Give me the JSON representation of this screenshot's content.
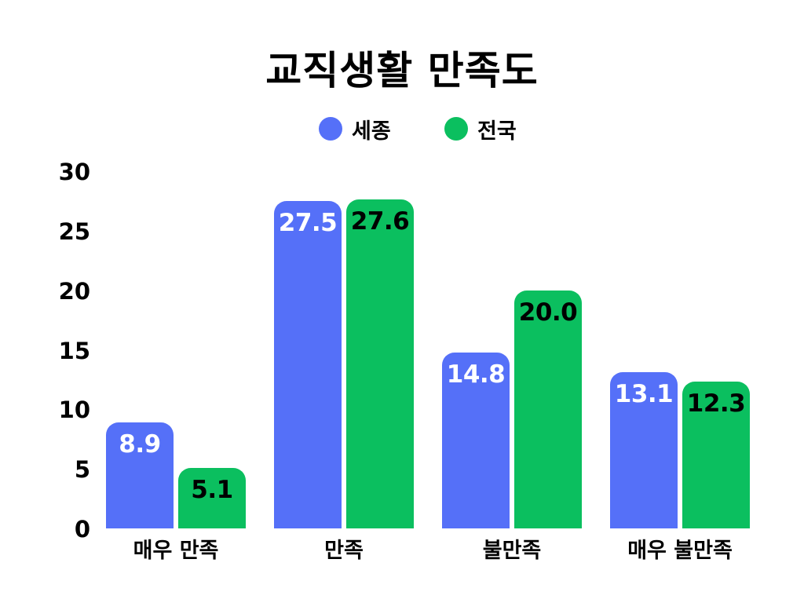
{
  "chart_data": {
    "type": "bar",
    "title": "교직생활 만족도",
    "categories": [
      "매우 만족",
      "만족",
      "불만족",
      "매우 불만족"
    ],
    "series": [
      {
        "name": "세종",
        "color": "#5570F8",
        "values": [
          8.9,
          27.5,
          14.8,
          13.1
        ],
        "value_labels": [
          "8.9",
          "27.5",
          "14.8",
          "13.1"
        ]
      },
      {
        "name": "전국",
        "color": "#0BBF5F",
        "values": [
          5.1,
          27.6,
          20.0,
          12.3
        ],
        "value_labels": [
          "5.1",
          "27.6",
          "20.0",
          "12.3"
        ]
      }
    ],
    "xlabel": "",
    "ylabel": "",
    "ylim": [
      0,
      30
    ],
    "yticks": [
      "30",
      "25",
      "20",
      "15",
      "10",
      "5",
      "0"
    ],
    "grid": false,
    "legend_position": "top-center"
  },
  "title": "교직생활 만족도",
  "legend": [
    {
      "label": "세종",
      "color": "#5570F8"
    },
    {
      "label": "전국",
      "color": "#0BBF5F"
    }
  ],
  "y_axis": {
    "ticks": [
      "30",
      "25",
      "20",
      "15",
      "10",
      "5",
      "0"
    ]
  },
  "x_axis": {
    "labels": [
      "매우 만족",
      "만족",
      "불만족",
      "매우 불만족"
    ]
  }
}
